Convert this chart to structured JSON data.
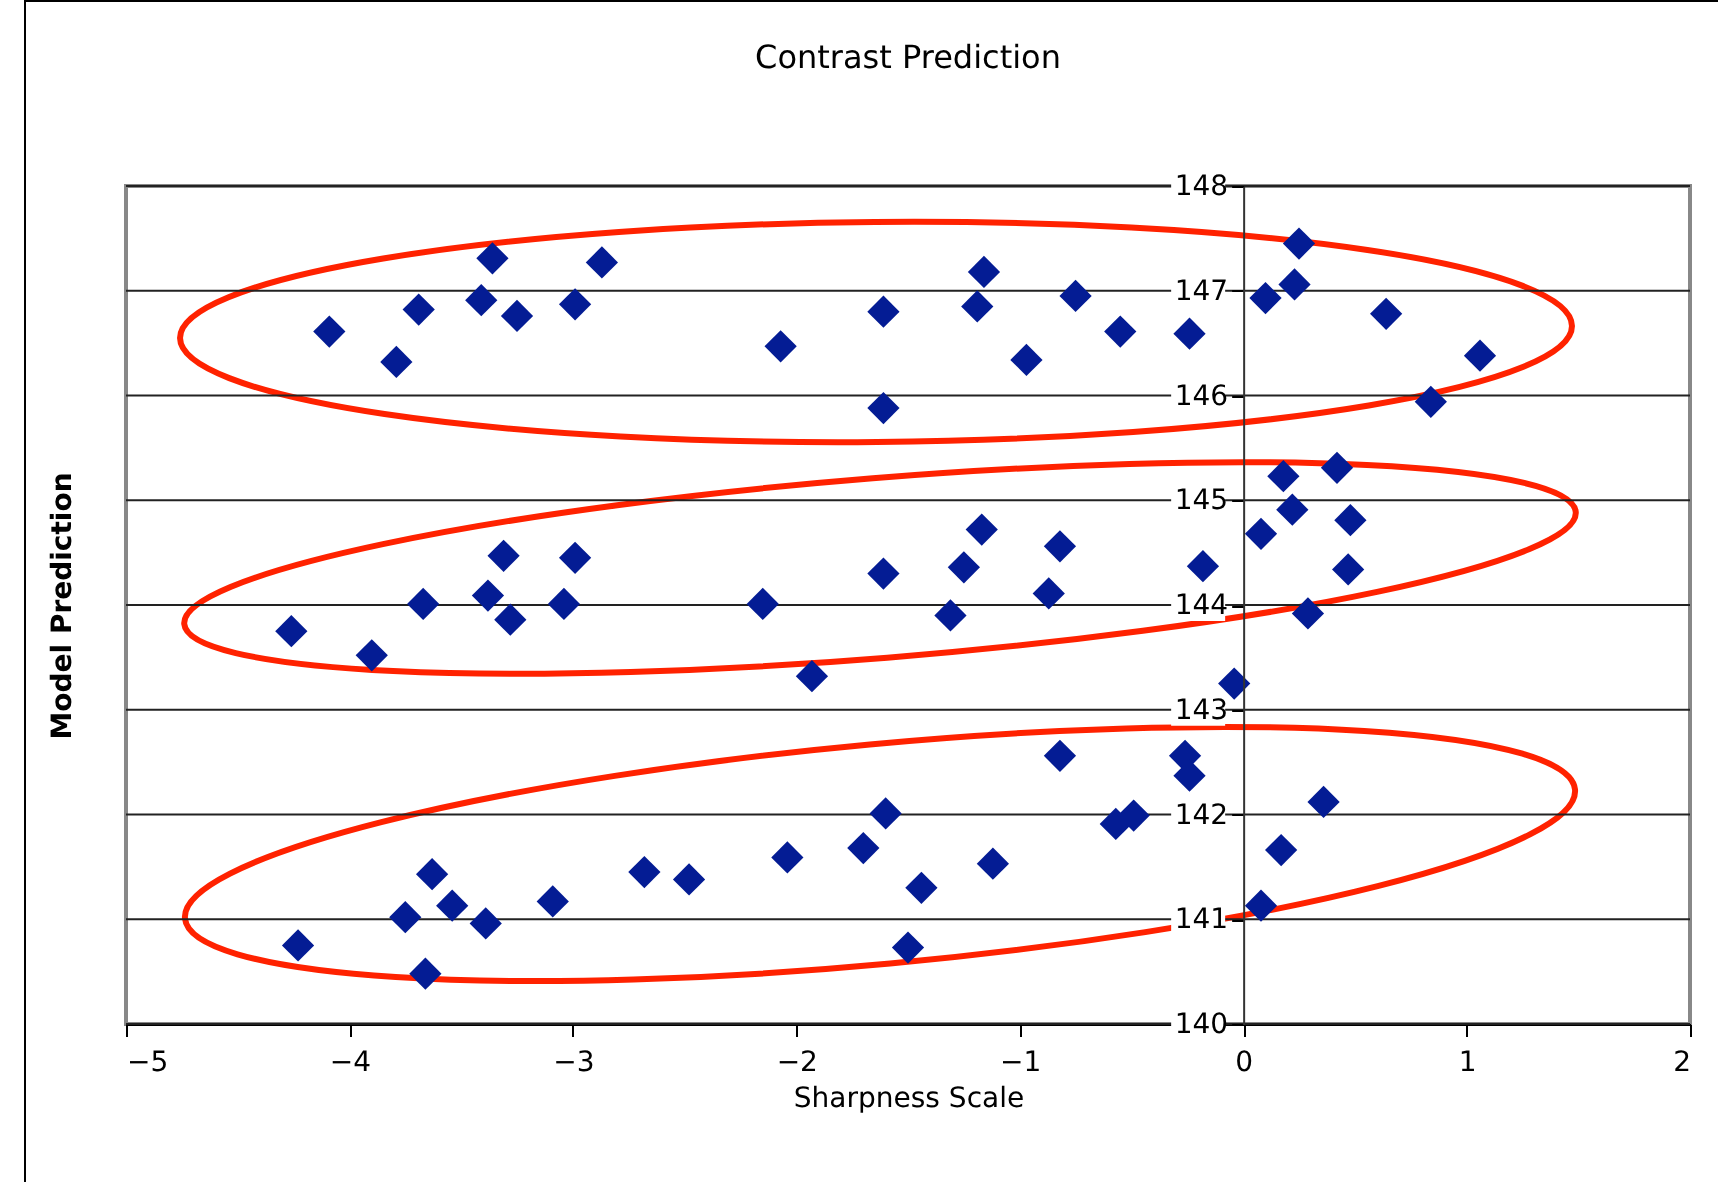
{
  "chart_data": {
    "type": "scatter",
    "title": "Contrast Prediction",
    "xlabel": "Sharpness Scale",
    "ylabel": "Model Prediction",
    "xlim": [
      -5,
      2
    ],
    "xticks": [
      -5,
      -4,
      -3,
      -2,
      -1,
      0,
      1,
      2
    ],
    "ylim": [
      140,
      148
    ],
    "yticks": [
      140,
      141,
      142,
      143,
      144,
      145,
      146,
      147,
      148
    ],
    "grid": "y",
    "marker": "diamond",
    "series": [
      {
        "color": "#041c94",
        "x": [
          -4.09,
          -3.79,
          -3.69,
          -3.36,
          -3.41,
          -3.25,
          -2.99,
          -2.87,
          -2.07,
          -1.61,
          -1.61,
          -1.16,
          -1.19,
          -0.97,
          -0.75,
          -0.55,
          -0.24,
          0.1,
          0.25,
          0.23,
          0.64,
          0.84,
          1.06,
          -4.26,
          -3.9,
          -3.67,
          -3.38,
          -3.31,
          -3.28,
          -2.99,
          -3.04,
          -2.15,
          -1.93,
          -1.61,
          -1.31,
          -1.25,
          -1.17,
          -0.87,
          -0.82,
          -0.18,
          -0.04,
          0.08,
          0.18,
          0.22,
          0.42,
          0.48,
          0.47,
          0.29,
          -4.23,
          -3.75,
          -3.63,
          -3.54,
          -3.39,
          -3.66,
          -3.09,
          -2.68,
          -2.48,
          -2.04,
          -1.7,
          -1.6,
          -1.44,
          -1.5,
          -1.12,
          -0.82,
          -0.57,
          -0.49,
          -0.26,
          -0.24,
          0.08,
          0.17,
          0.36
        ],
        "values": [
          146.61,
          146.32,
          146.82,
          147.31,
          146.91,
          146.76,
          146.87,
          147.27,
          146.47,
          146.8,
          145.88,
          147.18,
          146.85,
          146.34,
          146.95,
          146.61,
          146.59,
          146.93,
          147.45,
          147.06,
          146.78,
          145.94,
          146.38,
          143.75,
          143.52,
          144.01,
          144.09,
          144.47,
          143.86,
          144.45,
          144.01,
          144.01,
          143.32,
          144.3,
          143.9,
          144.36,
          144.72,
          144.11,
          144.56,
          144.37,
          143.25,
          144.68,
          145.23,
          144.91,
          145.31,
          144.81,
          144.34,
          143.92,
          140.75,
          141.02,
          141.43,
          141.13,
          140.96,
          140.48,
          141.17,
          141.45,
          141.38,
          141.59,
          141.68,
          142.01,
          141.3,
          140.73,
          141.53,
          142.56,
          141.91,
          141.99,
          142.56,
          142.37,
          141.13,
          141.66,
          142.12
        ]
      }
    ]
  }
}
